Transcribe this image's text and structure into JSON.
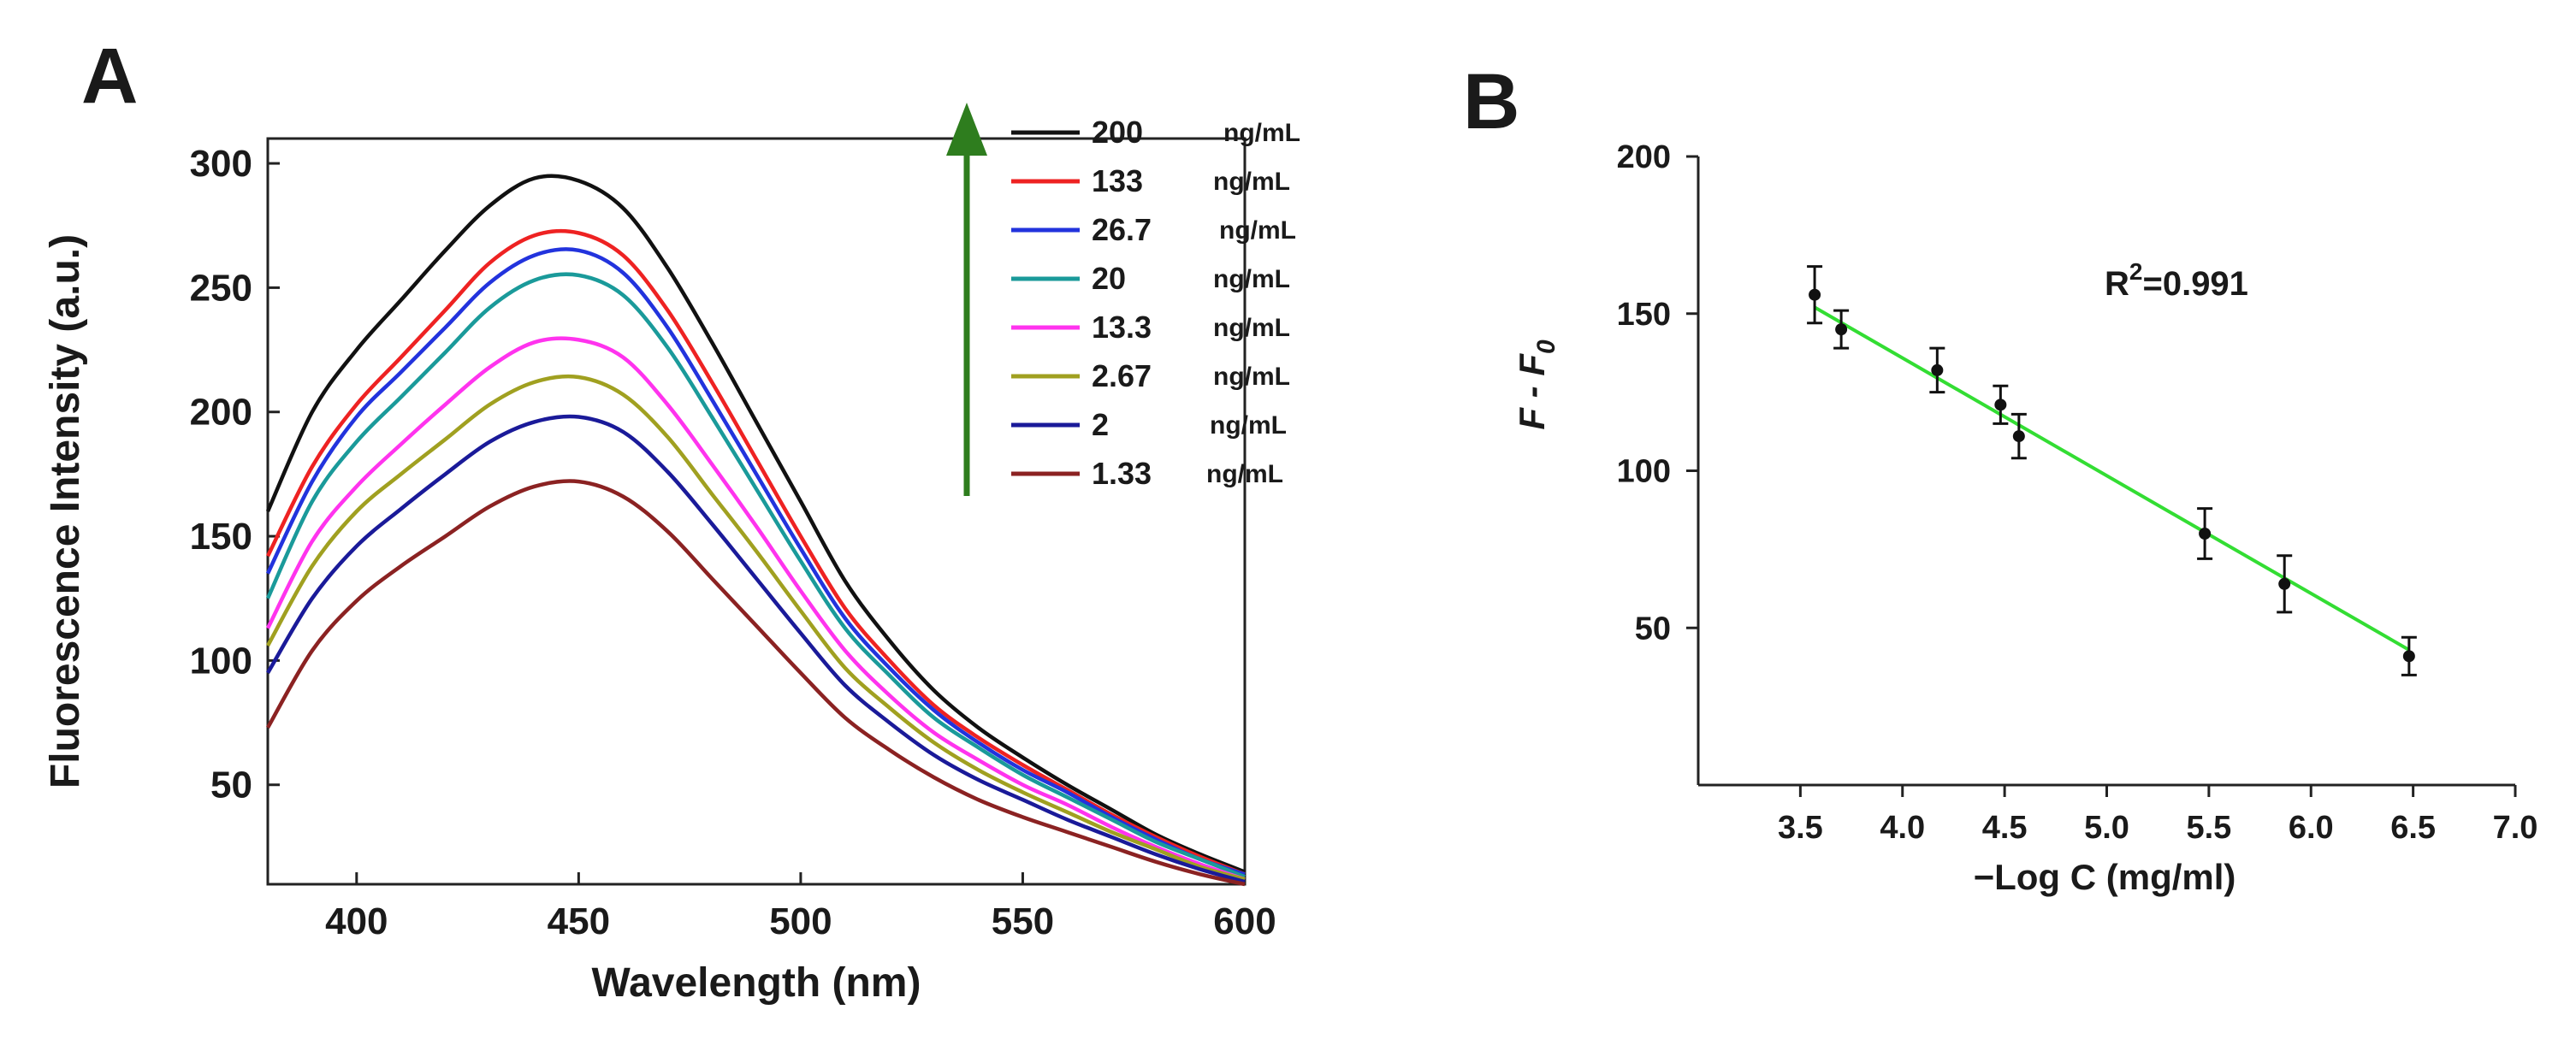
{
  "panel_a_label": "A",
  "panel_b_label": "B",
  "chart_data": [
    {
      "type": "line",
      "panel": "A",
      "xlabel": "Wavelength (nm)",
      "ylabel": "Fluorescence Intensity (a.u.)",
      "xlim": [
        380,
        600
      ],
      "ylim": [
        10,
        310
      ],
      "xticks": [
        400,
        450,
        500,
        550,
        600
      ],
      "yticks": [
        50,
        100,
        150,
        200,
        250,
        300
      ],
      "legend_position": "top-right",
      "annotation": "upward green arrow beside legend indicating increasing concentration",
      "x": [
        380,
        390,
        400,
        410,
        420,
        430,
        440,
        450,
        460,
        470,
        480,
        490,
        500,
        510,
        520,
        530,
        540,
        550,
        560,
        570,
        580,
        590,
        600
      ],
      "series": [
        {
          "name": "200",
          "unit": "ng/mL",
          "color": "#111111",
          "values": [
            160,
            200,
            225,
            245,
            265,
            283,
            294,
            293,
            282,
            258,
            228,
            196,
            164,
            132,
            108,
            88,
            73,
            61,
            50,
            40,
            30,
            22,
            15
          ]
        },
        {
          "name": "133",
          "unit": "ng/mL",
          "color": "#ee2222",
          "values": [
            142,
            178,
            203,
            222,
            241,
            260,
            271,
            272,
            263,
            241,
            212,
            181,
            150,
            121,
            100,
            82,
            69,
            58,
            48,
            38,
            29,
            21,
            14
          ]
        },
        {
          "name": "26.7",
          "unit": "ng/mL",
          "color": "#2233dd",
          "values": [
            135,
            172,
            198,
            216,
            234,
            252,
            263,
            265,
            256,
            234,
            205,
            175,
            145,
            117,
            97,
            80,
            67,
            56,
            47,
            37,
            28,
            20,
            14
          ]
        },
        {
          "name": "20",
          "unit": "ng/mL",
          "color": "#1a9a9a",
          "values": [
            125,
            164,
            188,
            206,
            224,
            242,
            253,
            255,
            247,
            226,
            198,
            169,
            140,
            113,
            94,
            77,
            65,
            54,
            45,
            36,
            27,
            20,
            13
          ]
        },
        {
          "name": "13.3",
          "unit": "ng/mL",
          "color": "#ff33ee",
          "values": [
            113,
            148,
            170,
            187,
            203,
            218,
            228,
            229,
            222,
            203,
            179,
            154,
            128,
            104,
            86,
            71,
            60,
            50,
            42,
            33,
            25,
            18,
            12
          ]
        },
        {
          "name": "2.67",
          "unit": "ng/mL",
          "color": "#a0a020",
          "values": [
            106,
            138,
            160,
            175,
            189,
            203,
            212,
            214,
            207,
            190,
            167,
            144,
            120,
            97,
            81,
            67,
            56,
            47,
            39,
            31,
            24,
            17,
            12
          ]
        },
        {
          "name": "2",
          "unit": "ng/mL",
          "color": "#1a1a99",
          "values": [
            95,
            125,
            146,
            161,
            175,
            188,
            196,
            198,
            192,
            176,
            155,
            133,
            111,
            90,
            75,
            62,
            52,
            44,
            36,
            29,
            22,
            16,
            11
          ]
        },
        {
          "name": "1.33",
          "unit": "ng/mL",
          "color": "#8b2222",
          "values": [
            73,
            104,
            124,
            138,
            150,
            162,
            170,
            172,
            166,
            152,
            133,
            114,
            95,
            77,
            64,
            53,
            44,
            37,
            31,
            25,
            19,
            14,
            10
          ]
        }
      ]
    },
    {
      "type": "scatter",
      "panel": "B",
      "xlabel": "−Log C (mg/ml)",
      "ylabel": "F - F0",
      "ylabel_main": "F - F",
      "ylabel_sub": "0",
      "xlim": [
        3.0,
        7.0
      ],
      "ylim": [
        0,
        200
      ],
      "xticks": [
        "3.5",
        "4.0",
        "4.5",
        "5.0",
        "5.5",
        "6.0",
        "6.5",
        "7.0"
      ],
      "yticks": [
        "50",
        "100",
        "150",
        "200"
      ],
      "points": [
        {
          "x": 3.57,
          "y": 156,
          "err": 9
        },
        {
          "x": 3.7,
          "y": 145,
          "err": 6
        },
        {
          "x": 4.17,
          "y": 132,
          "err": 7
        },
        {
          "x": 4.48,
          "y": 121,
          "err": 6
        },
        {
          "x": 4.57,
          "y": 111,
          "err": 7
        },
        {
          "x": 5.48,
          "y": 80,
          "err": 8
        },
        {
          "x": 5.87,
          "y": 64,
          "err": 9
        },
        {
          "x": 6.48,
          "y": 41,
          "err": 6
        }
      ],
      "fit": {
        "x1": 3.57,
        "y1": 152,
        "x2": 6.48,
        "y2": 43,
        "color": "#33dd33"
      },
      "r2_prefix": "R",
      "r2_exp": "2",
      "r2_value": "=0.991"
    }
  ]
}
